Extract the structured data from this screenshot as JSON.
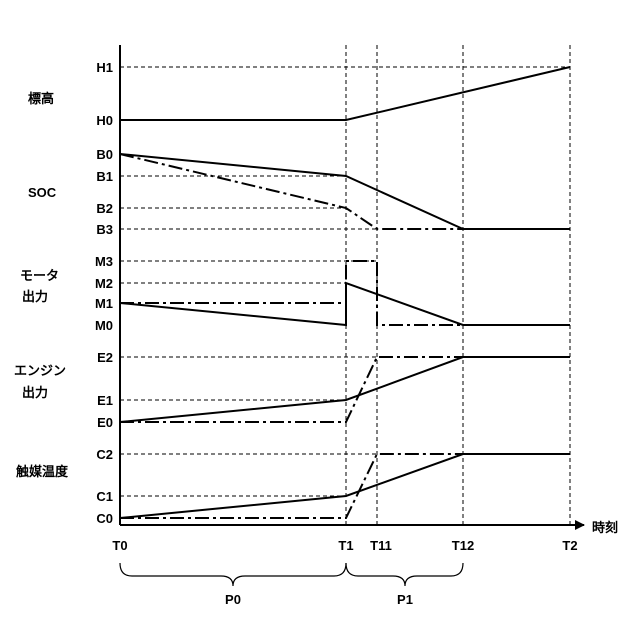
{
  "groups": {
    "altitude": "標高",
    "soc": "SOC",
    "motor_line1": "モータ",
    "motor_line2": "出力",
    "engine_line1": "エンジン",
    "engine_line2": "出力",
    "catalyst": "触媒温度"
  },
  "y_labels": {
    "H1": "H1",
    "H0": "H0",
    "B0": "B0",
    "B1": "B1",
    "B2": "B2",
    "B3": "B3",
    "M3": "M3",
    "M2": "M2",
    "M1": "M1",
    "M0": "M0",
    "E2": "E2",
    "E1": "E1",
    "E0": "E0",
    "C2": "C2",
    "C1": "C1",
    "C0": "C0"
  },
  "x_labels": {
    "T0": "T0",
    "T1": "T1",
    "T11": "T11",
    "T12": "T12",
    "T2": "T2"
  },
  "axis_title": "時刻",
  "periods": {
    "P0": "P0",
    "P1": "P1"
  }
}
